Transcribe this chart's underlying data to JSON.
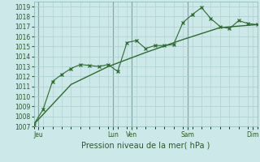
{
  "xlabel": "Pression niveau de la mer( hPa )",
  "ylim": [
    1007,
    1019.5
  ],
  "yticks": [
    1007,
    1008,
    1009,
    1010,
    1011,
    1012,
    1013,
    1014,
    1015,
    1016,
    1017,
    1018,
    1019
  ],
  "xlim": [
    0,
    24
  ],
  "bg_color": "#cce8e8",
  "grid_minor_color": "#aacece",
  "grid_major_color": "#88b8b8",
  "line_color": "#2d6b2d",
  "day_labels": [
    "Jeu",
    "Lun",
    "Ven",
    "Sam",
    "Dim"
  ],
  "day_positions": [
    0.5,
    8.5,
    10.5,
    16.5,
    23.5
  ],
  "vline_positions": [
    0.5,
    8.5,
    10.5,
    16.5
  ],
  "series1_x": [
    0,
    1,
    2,
    3,
    4,
    5,
    6,
    7,
    8,
    9,
    10,
    11,
    12,
    13,
    14,
    15,
    16,
    17,
    18,
    19,
    20,
    21,
    22,
    23,
    24
  ],
  "series1_y": [
    1007.2,
    1008.7,
    1011.5,
    1012.2,
    1012.8,
    1013.2,
    1013.1,
    1013.0,
    1013.2,
    1012.5,
    1015.4,
    1015.6,
    1014.8,
    1015.1,
    1015.1,
    1015.2,
    1017.4,
    1018.2,
    1018.9,
    1017.8,
    1017.0,
    1016.8,
    1017.6,
    1017.3,
    1017.2
  ],
  "series2_x": [
    0,
    4,
    8,
    12,
    16,
    20,
    24
  ],
  "series2_y": [
    1007.2,
    1011.2,
    1013.0,
    1014.4,
    1015.7,
    1016.9,
    1017.2
  ],
  "tick_fontsize": 5.5,
  "xlabel_fontsize": 7
}
